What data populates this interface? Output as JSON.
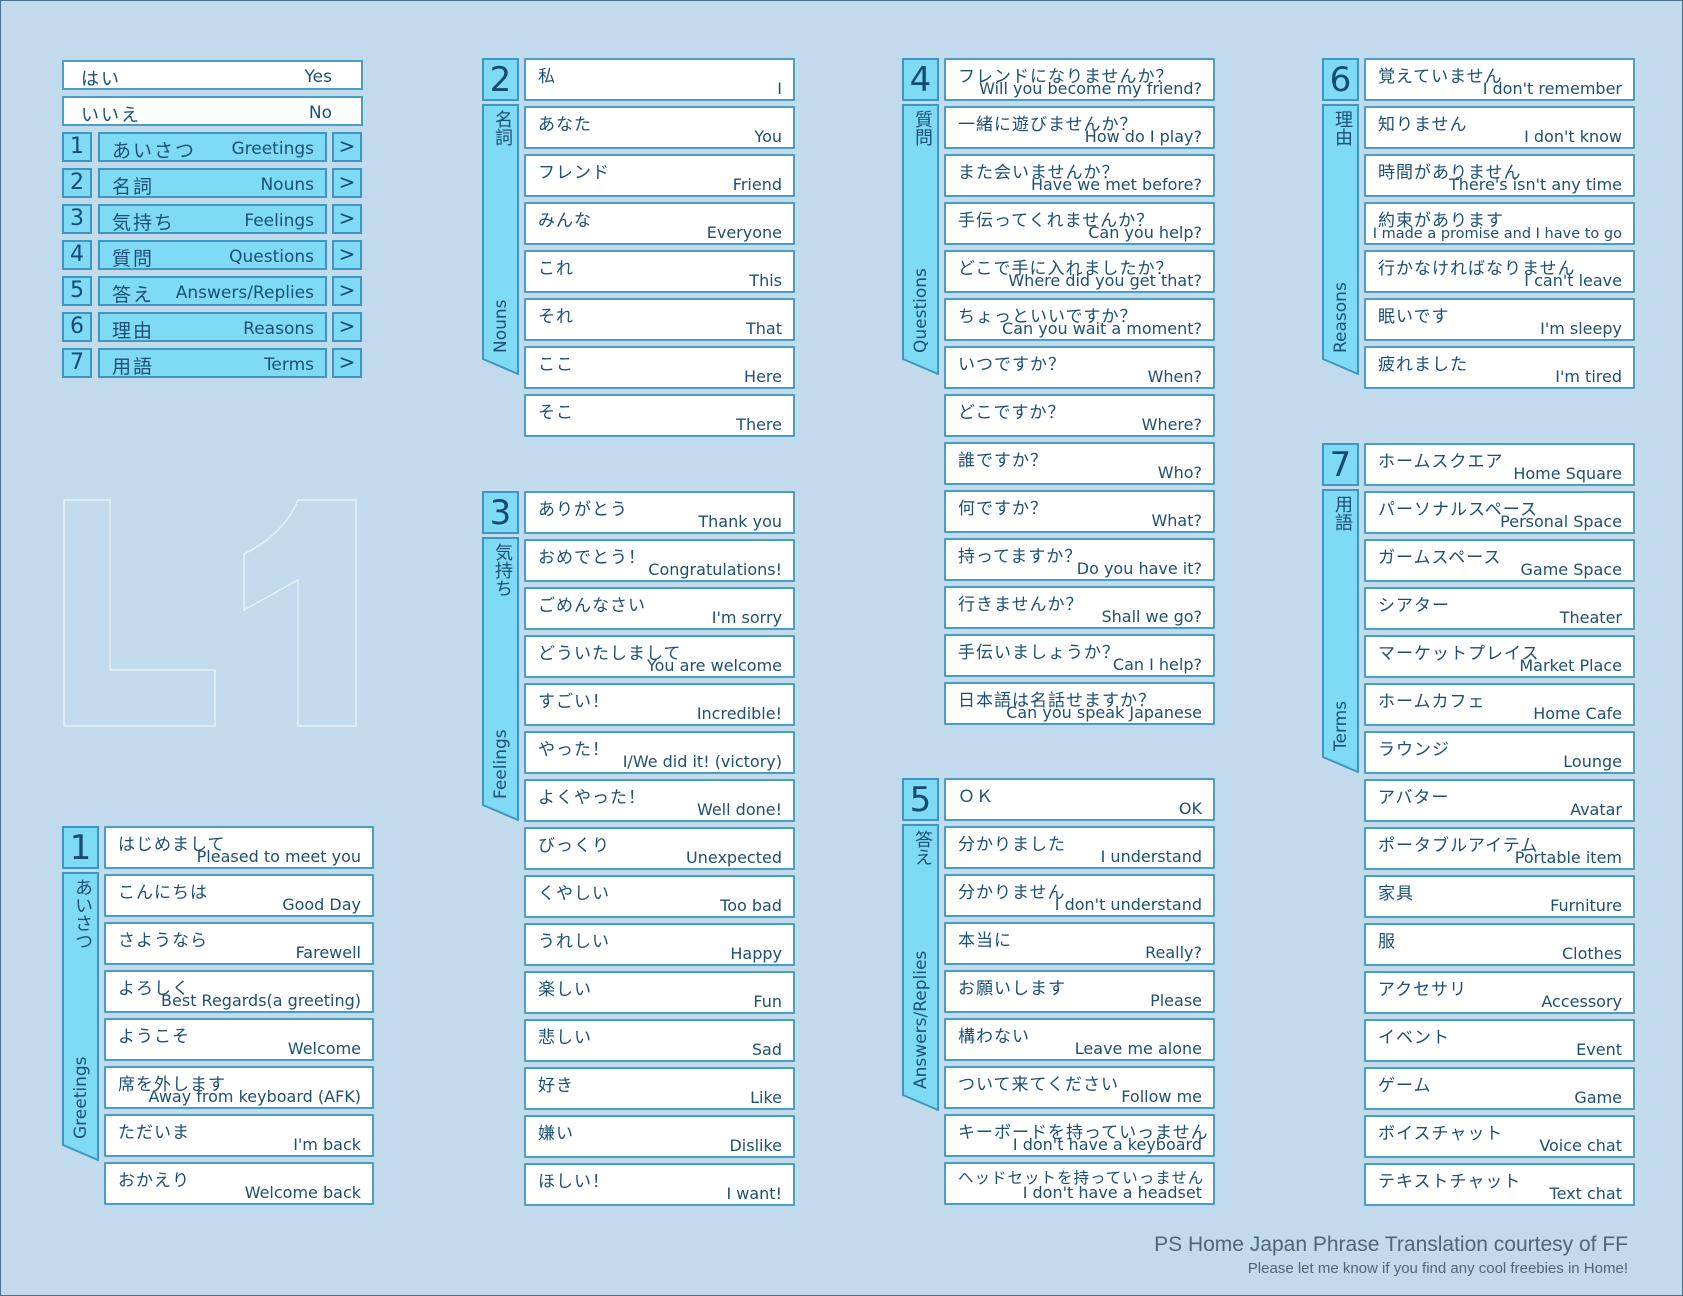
{
  "menu": {
    "yes": {
      "jp": "はい",
      "en": "Yes"
    },
    "no": {
      "jp": "いいえ",
      "en": "No"
    },
    "items": [
      {
        "num": "1",
        "jp": "あいさつ",
        "en": "Greetings"
      },
      {
        "num": "2",
        "jp": "名詞",
        "en": "Nouns"
      },
      {
        "num": "3",
        "jp": "気持ち",
        "en": "Feelings"
      },
      {
        "num": "4",
        "jp": "質問",
        "en": "Questions"
      },
      {
        "num": "5",
        "jp": "答え",
        "en": "Answers/Replies"
      },
      {
        "num": "6",
        "jp": "理由",
        "en": "Reasons"
      },
      {
        "num": "7",
        "jp": "用語",
        "en": "Terms"
      }
    ],
    "arrow": ">"
  },
  "logo": "L1",
  "sections": [
    {
      "num": "1",
      "kanji": "あいさつ",
      "label": "Greetings",
      "phrases": [
        {
          "jp": "はじめまして",
          "en": "Pleased to meet you"
        },
        {
          "jp": "こんにちは",
          "en": "Good Day"
        },
        {
          "jp": "さようなら",
          "en": "Farewell"
        },
        {
          "jp": "よろしく",
          "en": "Best Regards(a greeting)"
        },
        {
          "jp": "ようこそ",
          "en": "Welcome"
        },
        {
          "jp": "席を外します",
          "en": "Away from keyboard (AFK)"
        },
        {
          "jp": "ただいま",
          "en": "I'm back"
        },
        {
          "jp": "おかえり",
          "en": "Welcome back"
        }
      ]
    },
    {
      "num": "2",
      "kanji": "名詞",
      "label": "Nouns",
      "phrases": [
        {
          "jp": "私",
          "en": "I"
        },
        {
          "jp": "あなた",
          "en": "You"
        },
        {
          "jp": "フレンド",
          "en": "Friend"
        },
        {
          "jp": "みんな",
          "en": "Everyone"
        },
        {
          "jp": "これ",
          "en": "This"
        },
        {
          "jp": "それ",
          "en": "That"
        },
        {
          "jp": "ここ",
          "en": "Here"
        },
        {
          "jp": "そこ",
          "en": "There"
        }
      ]
    },
    {
      "num": "3",
      "kanji": "気持ち",
      "label": "Feelings",
      "phrases": [
        {
          "jp": "ありがとう",
          "en": "Thank you"
        },
        {
          "jp": "おめでとう！",
          "en": "Congratulations!"
        },
        {
          "jp": "ごめんなさい",
          "en": "I'm sorry"
        },
        {
          "jp": "どういたしまして",
          "en": "You are welcome"
        },
        {
          "jp": "すごい！",
          "en": "Incredible!"
        },
        {
          "jp": "やった！",
          "en": "I/We did it! (victory)"
        },
        {
          "jp": "よくやった！",
          "en": "Well done!"
        },
        {
          "jp": "びっくり",
          "en": "Unexpected"
        },
        {
          "jp": "くやしい",
          "en": "Too bad"
        },
        {
          "jp": "うれしい",
          "en": "Happy"
        },
        {
          "jp": "楽しい",
          "en": "Fun"
        },
        {
          "jp": "悲しい",
          "en": "Sad"
        },
        {
          "jp": "好き",
          "en": "Like"
        },
        {
          "jp": "嫌い",
          "en": "Dislike"
        },
        {
          "jp": "ほしい！",
          "en": "I want!"
        }
      ]
    },
    {
      "num": "4",
      "kanji": "質問",
      "label": "Questions",
      "phrases": [
        {
          "jp": "フレンドになりませんか？",
          "en": "Will you become my friend?"
        },
        {
          "jp": "一緒に遊びませんか？",
          "en": "How do I play?"
        },
        {
          "jp": "また会いませんか？",
          "en": "Have we met before?"
        },
        {
          "jp": "手伝ってくれませんか？",
          "en": "Can you help?"
        },
        {
          "jp": "どこで手に入れましたか？",
          "en": "Where did you get that?"
        },
        {
          "jp": "ちょっといいですか？",
          "en": "Can you wait a moment?"
        },
        {
          "jp": "いつですか？",
          "en": "When?"
        },
        {
          "jp": "どこですか？",
          "en": "Where?"
        },
        {
          "jp": "誰ですか？",
          "en": "Who?"
        },
        {
          "jp": "何ですか？",
          "en": "What?"
        },
        {
          "jp": "持ってますか？",
          "en": "Do you have it?"
        },
        {
          "jp": "行きませんか？",
          "en": "Shall we go?"
        },
        {
          "jp": "手伝いましょうか？",
          "en": "Can I help?"
        },
        {
          "jp": "日本語は名話せますか？",
          "en": "Can you speak Japanese"
        }
      ]
    },
    {
      "num": "5",
      "kanji": "答え",
      "label": "Answers/Replies",
      "phrases": [
        {
          "jp": "ＯＫ",
          "en": "OK"
        },
        {
          "jp": "分かりました",
          "en": "I understand"
        },
        {
          "jp": "分かりません",
          "en": "I don't understand"
        },
        {
          "jp": "本当に",
          "en": "Really?"
        },
        {
          "jp": "お願いします",
          "en": "Please"
        },
        {
          "jp": "構わない",
          "en": "Leave me alone"
        },
        {
          "jp": "ついて来てください",
          "en": "Follow me"
        },
        {
          "jp": "キーボードを持っていっません",
          "en": "I don't have a keyboard"
        },
        {
          "jp": "ヘッドセットを持っていっません",
          "en": "I don't have a headset"
        }
      ]
    },
    {
      "num": "6",
      "kanji": "理由",
      "label": "Reasons",
      "phrases": [
        {
          "jp": "覚えていません",
          "en": "I don't remember"
        },
        {
          "jp": "知りません",
          "en": "I don't know"
        },
        {
          "jp": "時間がありません",
          "en": "There's isn't any time"
        },
        {
          "jp": "約束があります",
          "en": "I made a promise and I have to go"
        },
        {
          "jp": "行かなければなりません",
          "en": "I can't leave"
        },
        {
          "jp": "眠いです",
          "en": "I'm sleepy"
        },
        {
          "jp": "疲れました",
          "en": "I'm tired"
        }
      ]
    },
    {
      "num": "7",
      "kanji": "用語",
      "label": "Terms",
      "phrases": [
        {
          "jp": "ホームスクエア",
          "en": "Home Square"
        },
        {
          "jp": "パーソナルスペース",
          "en": "Personal Space"
        },
        {
          "jp": "ガームスペース",
          "en": "Game Space"
        },
        {
          "jp": "シアター",
          "en": "Theater"
        },
        {
          "jp": "マーケットプレイス",
          "en": "Market Place"
        },
        {
          "jp": "ホームカフェ",
          "en": "Home Cafe"
        },
        {
          "jp": "ラウンジ",
          "en": "Lounge"
        },
        {
          "jp": "アバター",
          "en": "Avatar"
        },
        {
          "jp": "ポータブルアイテム",
          "en": "Portable item"
        },
        {
          "jp": "家具",
          "en": "Furniture"
        },
        {
          "jp": "服",
          "en": "Clothes"
        },
        {
          "jp": "アクセサリ",
          "en": "Accessory"
        },
        {
          "jp": "イベント",
          "en": "Event"
        },
        {
          "jp": "ゲーム",
          "en": "Game"
        },
        {
          "jp": "ボイスチャット",
          "en": "Voice chat"
        },
        {
          "jp": "テキストチャット",
          "en": "Text chat"
        }
      ]
    }
  ],
  "credit": {
    "line1": "PS Home Japan Phrase Translation courtesy of  FF",
    "line2": "Please let me know if you find any cool freebies in Home!"
  },
  "colors": {
    "background": "#c1dbec",
    "accent": "#7fdaf5",
    "border": "#4a9dc6",
    "text": "#1b4f78"
  }
}
